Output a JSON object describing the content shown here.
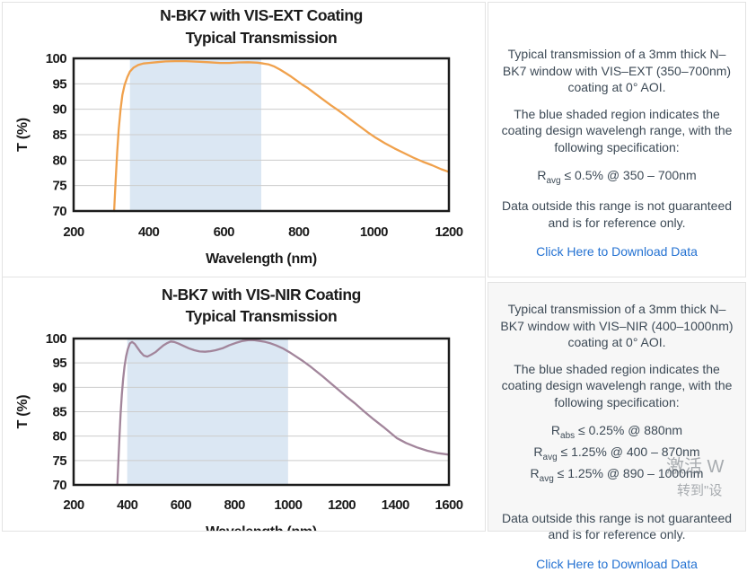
{
  "colors": {
    "band": "#dbe7f3",
    "grid": "#cccccc",
    "frame": "#1b1b1b",
    "vis_ext_line": "#f0a14c",
    "vis_nir_line": "#a2859b",
    "link": "#2472d2",
    "body_text": "#3d4a56"
  },
  "chart_data": [
    {
      "type": "line",
      "title": "N-BK7 with VIS-EXT Coating",
      "subtitle": "Typical Transmission",
      "xlabel": "Wavelength (nm)",
      "ylabel": "T (%)",
      "xlim": [
        200,
        1200
      ],
      "ylim": [
        70,
        100
      ],
      "xticks": [
        200,
        400,
        600,
        800,
        1000,
        1200
      ],
      "yticks": [
        70,
        75,
        80,
        85,
        90,
        95,
        100
      ],
      "grid": "horizontal",
      "legend": "none",
      "shaded_region": {
        "x0": 350,
        "x1": 700,
        "meaning": "coating design wavelength range"
      },
      "line_color": "#f0a14c",
      "series_name": "Transmission (%)",
      "x": [
        308,
        312,
        316,
        320,
        325,
        330,
        336,
        343,
        350,
        360,
        372,
        386,
        400,
        420,
        445,
        470,
        500,
        530,
        560,
        590,
        615,
        640,
        665,
        690,
        705,
        720,
        735,
        750,
        765,
        780,
        795,
        810,
        825,
        845,
        865,
        885,
        905,
        925,
        945,
        965,
        985,
        1005,
        1030,
        1055,
        1080,
        1105,
        1130,
        1155,
        1180,
        1200
      ],
      "y": [
        70,
        76,
        81.5,
        86,
        90,
        92.8,
        94.8,
        96.3,
        97.4,
        98.2,
        98.7,
        99.0,
        99.1,
        99.25,
        99.4,
        99.45,
        99.45,
        99.35,
        99.25,
        99.1,
        99.1,
        99.2,
        99.25,
        99.15,
        99.0,
        98.8,
        98.4,
        97.8,
        97.1,
        96.4,
        95.6,
        94.8,
        94.1,
        93.0,
        91.9,
        90.8,
        89.8,
        88.7,
        87.6,
        86.5,
        85.4,
        84.4,
        83.3,
        82.3,
        81.4,
        80.5,
        79.7,
        79.0,
        78.2,
        77.7
      ]
    },
    {
      "type": "line",
      "title": "N-BK7 with VIS-NIR Coating",
      "subtitle": "Typical Transmission",
      "xlabel": "Wavelength (nm)",
      "ylabel": "T (%)",
      "xlim": [
        200,
        1600
      ],
      "ylim": [
        70,
        100
      ],
      "xticks": [
        200,
        400,
        600,
        800,
        1000,
        1200,
        1400,
        1600
      ],
      "yticks": [
        70,
        75,
        80,
        85,
        90,
        95,
        100
      ],
      "grid": "horizontal",
      "legend": "none",
      "shaded_region": {
        "x0": 400,
        "x1": 1000,
        "meaning": "coating design wavelength range"
      },
      "line_color": "#a2859b",
      "series_name": "Transmission (%)",
      "x": [
        363,
        367,
        371,
        375,
        380,
        385,
        390,
        396,
        402,
        410,
        418,
        428,
        438,
        450,
        462,
        475,
        490,
        505,
        520,
        535,
        550,
        562,
        575,
        590,
        610,
        630,
        650,
        670,
        690,
        710,
        730,
        755,
        780,
        805,
        830,
        855,
        875,
        895,
        915,
        935,
        955,
        980,
        1005,
        1030,
        1055,
        1080,
        1105,
        1130,
        1160,
        1190,
        1220,
        1250,
        1285,
        1320,
        1355,
        1390,
        1405,
        1440,
        1480,
        1520,
        1560,
        1600
      ],
      "y": [
        70,
        75,
        80,
        84.5,
        88.5,
        91.8,
        94.3,
        96.4,
        97.8,
        99.0,
        99.3,
        98.9,
        98.1,
        97.2,
        96.5,
        96.3,
        96.7,
        97.2,
        97.9,
        98.6,
        99.1,
        99.4,
        99.3,
        99.0,
        98.5,
        98.0,
        97.6,
        97.35,
        97.3,
        97.4,
        97.6,
        98.0,
        98.6,
        99.1,
        99.5,
        99.7,
        99.65,
        99.5,
        99.3,
        99.0,
        98.6,
        98.0,
        97.2,
        96.3,
        95.4,
        94.4,
        93.3,
        92.2,
        90.8,
        89.4,
        88.0,
        86.7,
        85.0,
        83.4,
        81.9,
        80.3,
        79.6,
        78.6,
        77.7,
        77.0,
        76.5,
        76.2
      ]
    }
  ],
  "panels": [
    {
      "description": "Typical transmission of a 3mm thick N–BK7 window with VIS–EXT (350–700nm) coating at 0° AOI.",
      "band_note": "The blue shaded region indicates the coating design wavelengh range, with the following specification:",
      "specs": [
        {
          "prefix": "R",
          "sub": "avg",
          "text": "≤ 0.5% @ 350 – 700nm"
        }
      ],
      "disclaimer": "Data outside this range is not guaranteed and is for reference only.",
      "link_label": "Click Here to Download Data"
    },
    {
      "description": "Typical transmission of a 3mm thick N–BK7 window with VIS–NIR (400–1000nm) coating at 0° AOI.",
      "band_note": "The blue shaded region indicates the coating design wavelengh range, with the following specification:",
      "specs": [
        {
          "prefix": "R",
          "sub": "abs",
          "text": "≤ 0.25% @ 880nm"
        },
        {
          "prefix": "R",
          "sub": "avg",
          "text": "≤ 1.25% @ 400 – 870nm"
        },
        {
          "prefix": "R",
          "sub": "avg",
          "text": "≤ 1.25% @ 890 – 1000nm"
        }
      ],
      "disclaimer": "Data outside this range is not guaranteed and is for reference only.",
      "link_label": "Click Here to Download Data"
    }
  ],
  "watermark": {
    "line1": "激活 W",
    "line2": "转到\"设"
  }
}
